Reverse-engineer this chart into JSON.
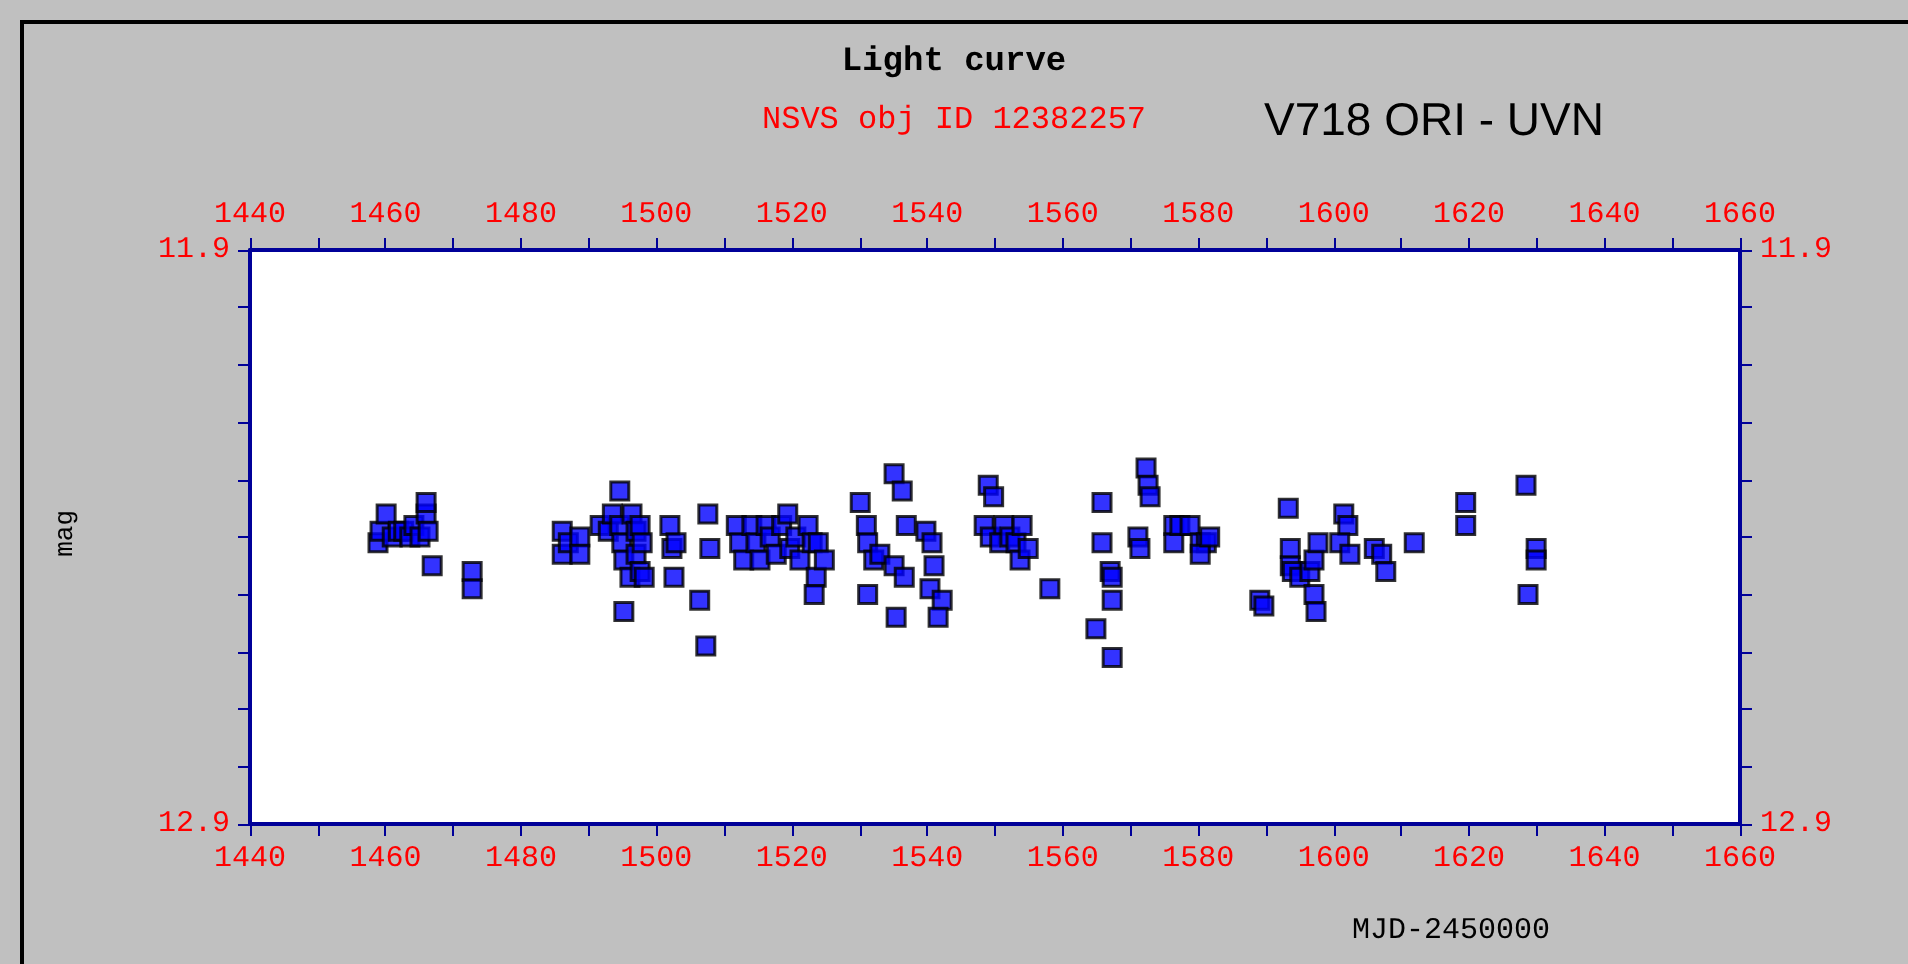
{
  "chart_data": {
    "type": "scatter",
    "title": "Light curve",
    "subtitle": "NSVS obj ID 12382257",
    "annotations": [
      "V718 ORI - UVN"
    ],
    "xlabel": "MJD-2450000",
    "ylabel": "mag",
    "marker": "square",
    "grid": false,
    "xlim": [
      1440,
      1660
    ],
    "x2lim": [
      1440,
      1660
    ],
    "xticks": [
      1440,
      {
        "value": 1450,
        "label": null
      },
      1460,
      {
        "value": 1470,
        "label": null
      },
      1480,
      {
        "value": 1490,
        "label": null
      },
      1500,
      {
        "value": 1510,
        "label": null
      },
      1520,
      {
        "value": 1530,
        "label": null
      },
      1540,
      {
        "value": 1550,
        "label": null
      },
      1560,
      {
        "value": 1570,
        "label": null
      },
      1580,
      {
        "value": 1590,
        "label": null
      },
      1600,
      {
        "value": 1610,
        "label": null
      },
      1620,
      {
        "value": 1630,
        "label": null
      },
      1640,
      {
        "value": 1650,
        "label": null
      },
      1660
    ],
    "x2ticks": [
      1440,
      {
        "value": 1450,
        "label": null
      },
      1460,
      {
        "value": 1470,
        "label": null
      },
      1480,
      {
        "value": 1490,
        "label": null
      },
      1500,
      {
        "value": 1510,
        "label": null
      },
      1520,
      {
        "value": 1530,
        "label": null
      },
      1540,
      {
        "value": 1550,
        "label": null
      },
      1560,
      {
        "value": 1570,
        "label": null
      },
      1580,
      {
        "value": 1590,
        "label": null
      },
      1600,
      {
        "value": 1610,
        "label": null
      },
      1620,
      {
        "value": 1630,
        "label": null
      },
      1640,
      {
        "value": 1650,
        "label": null
      },
      1660
    ],
    "ylim": [
      12.9,
      11.9
    ],
    "y2lim": [
      12.9,
      11.9
    ],
    "yticks": [
      {
        "value": 11.9,
        "label": "11.9"
      },
      {
        "value": 12.0,
        "label": null
      },
      {
        "value": 12.1,
        "label": null
      },
      {
        "value": 12.2,
        "label": null
      },
      {
        "value": 12.3,
        "label": null
      },
      {
        "value": 12.4,
        "label": null
      },
      {
        "value": 12.5,
        "label": null
      },
      {
        "value": 12.6,
        "label": null
      },
      {
        "value": 12.7,
        "label": null
      },
      {
        "value": 12.8,
        "label": null
      },
      {
        "value": 12.9,
        "label": "12.9"
      }
    ],
    "y2ticks": [
      {
        "value": 11.9,
        "label": "11.9"
      },
      {
        "value": 12.0,
        "label": null
      },
      {
        "value": 12.1,
        "label": null
      },
      {
        "value": 12.2,
        "label": null
      },
      {
        "value": 12.3,
        "label": null
      },
      {
        "value": 12.4,
        "label": null
      },
      {
        "value": 12.5,
        "label": null
      },
      {
        "value": 12.6,
        "label": null
      },
      {
        "value": 12.7,
        "label": null
      },
      {
        "value": 12.8,
        "label": null
      },
      {
        "value": 12.9,
        "label": "12.9"
      }
    ],
    "series": [
      {
        "color": "#0000ff",
        "x": [
          1458.9,
          1459.2,
          1460.1,
          1461.0,
          1461.9,
          1462.7,
          1463.6,
          1464.2,
          1465.1,
          1466.0,
          1466.0,
          1466.3,
          1466.9,
          1472.8,
          1472.8,
          1486.1,
          1486.1,
          1487.0,
          1488.7,
          1488.7,
          1491.7,
          1492.9,
          1493.5,
          1494.6,
          1494.6,
          1494.9,
          1495.2,
          1496.1,
          1496.4,
          1497.0,
          1497.0,
          1497.6,
          1497.9,
          1497.6,
          1498.2,
          1495.2,
          1502.0,
          1502.3,
          1502.6,
          1502.9,
          1506.4,
          1507.3,
          1507.6,
          1507.9,
          1511.8,
          1512.3,
          1512.9,
          1514.1,
          1514.7,
          1515.3,
          1516.2,
          1516.8,
          1517.7,
          1518.5,
          1519.4,
          1519.7,
          1520.6,
          1521.2,
          1522.4,
          1523.0,
          1523.9,
          1523.6,
          1524.8,
          1523.3,
          1530.1,
          1531.0,
          1531.2,
          1532.1,
          1533.0,
          1531.2,
          1535.1,
          1536.3,
          1536.9,
          1535.1,
          1536.6,
          1535.4,
          1539.8,
          1540.7,
          1541.0,
          1540.4,
          1542.2,
          1541.6,
          1549.0,
          1549.8,
          1548.4,
          1549.3,
          1551.3,
          1550.7,
          1552.2,
          1553.1,
          1553.7,
          1554.9,
          1554.0,
          1558.1,
          1565.8,
          1565.8,
          1567.0,
          1567.3,
          1567.3,
          1564.9,
          1567.3,
          1572.3,
          1572.6,
          1572.9,
          1571.1,
          1571.4,
          1576.4,
          1576.4,
          1577.3,
          1578.8,
          1580.3,
          1581.2,
          1580.3,
          1581.7,
          1589.1,
          1589.7,
          1593.3,
          1593.6,
          1593.6,
          1593.9,
          1595.0,
          1596.5,
          1597.1,
          1597.4,
          1597.1,
          1597.7,
          1601.5,
          1602.1,
          1600.9,
          1602.4,
          1606.0,
          1607.1,
          1607.7,
          1611.9,
          1619.5,
          1619.5,
          1628.4,
          1629.9,
          1629.9,
          1628.7
        ],
        "values": [
          12.41,
          12.39,
          12.36,
          12.4,
          12.39,
          12.39,
          12.4,
          12.38,
          12.4,
          12.36,
          12.34,
          12.39,
          12.45,
          12.46,
          12.49,
          12.39,
          12.43,
          12.41,
          12.4,
          12.43,
          12.38,
          12.39,
          12.36,
          12.32,
          12.38,
          12.41,
          12.44,
          12.47,
          12.36,
          12.39,
          12.43,
          12.38,
          12.41,
          12.46,
          12.47,
          12.53,
          12.38,
          12.42,
          12.47,
          12.41,
          12.51,
          12.59,
          12.36,
          12.42,
          12.38,
          12.41,
          12.44,
          12.38,
          12.41,
          12.44,
          12.38,
          12.4,
          12.43,
          12.38,
          12.36,
          12.42,
          12.4,
          12.44,
          12.38,
          12.41,
          12.41,
          12.47,
          12.44,
          12.5,
          12.34,
          12.38,
          12.41,
          12.44,
          12.43,
          12.5,
          12.29,
          12.32,
          12.38,
          12.45,
          12.47,
          12.54,
          12.39,
          12.41,
          12.45,
          12.49,
          12.51,
          12.54,
          12.31,
          12.33,
          12.38,
          12.4,
          12.38,
          12.41,
          12.4,
          12.41,
          12.44,
          12.42,
          12.38,
          12.49,
          12.34,
          12.41,
          12.46,
          12.51,
          12.47,
          12.56,
          12.61,
          12.28,
          12.31,
          12.33,
          12.4,
          12.42,
          12.38,
          12.41,
          12.38,
          12.38,
          12.41,
          12.41,
          12.43,
          12.4,
          12.51,
          12.52,
          12.35,
          12.42,
          12.45,
          12.46,
          12.47,
          12.46,
          12.5,
          12.53,
          12.44,
          12.41,
          12.36,
          12.38,
          12.41,
          12.43,
          12.42,
          12.43,
          12.46,
          12.41,
          12.34,
          12.38,
          12.31,
          12.42,
          12.44,
          12.5
        ]
      }
    ]
  }
}
